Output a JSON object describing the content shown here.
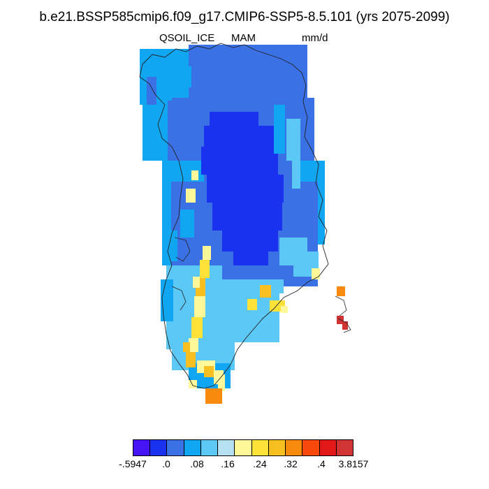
{
  "header": {
    "title": "b.e21.BSSP585cmip6.f09_g17.CMIP6-SSP5-8.5.101 (yrs 2075-2099)",
    "variable": "QSOIL_ICE",
    "season": "MAM",
    "units": "mm/d"
  },
  "colorbar": {
    "colors": [
      "#4414f5",
      "#1a32f0",
      "#3a72e6",
      "#11a6f2",
      "#5cc8f5",
      "#b4e0f2",
      "#fff89a",
      "#fde23a",
      "#f7bf1f",
      "#f88a0e",
      "#f8480c",
      "#e01818",
      "#d03434"
    ],
    "labels": [
      "-.5947",
      ".0",
      ".08",
      ".16",
      ".24",
      ".32",
      ".4",
      "3.8157"
    ]
  },
  "map": {
    "region": "Greenland",
    "palette": {
      "dark": "#1a32f0",
      "mid": "#3a72e6",
      "light": "#11a6f2",
      "pale": "#5cc8f5",
      "cream": "#fff89a",
      "yellow": "#fde23a",
      "gold": "#f7bf1f",
      "orange": "#f88a0e",
      "red": "#d03434"
    }
  }
}
